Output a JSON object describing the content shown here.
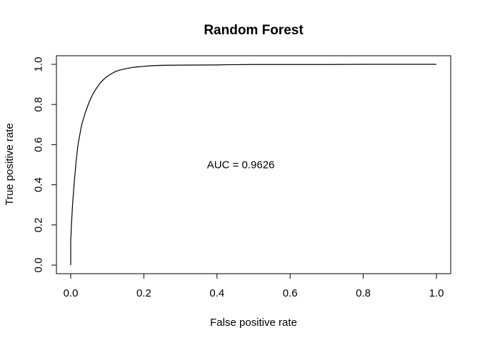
{
  "chart_data": {
    "type": "line",
    "title": "Random Forest",
    "xlabel": "False positive rate",
    "ylabel": "True positive rate",
    "xlim": [
      0,
      1
    ],
    "ylim": [
      0,
      1
    ],
    "x_ticks": [
      0.0,
      0.2,
      0.4,
      0.6,
      0.8,
      1.0
    ],
    "x_tick_labels": [
      "0.0",
      "0.2",
      "0.4",
      "0.6",
      "0.8",
      "1.0"
    ],
    "y_ticks": [
      0.0,
      0.2,
      0.4,
      0.6,
      0.8,
      1.0
    ],
    "y_tick_labels": [
      "0.0",
      "0.2",
      "0.4",
      "0.6",
      "0.8",
      "1.0"
    ],
    "grid": false,
    "series": [
      {
        "color": "#000000",
        "x": [
          0.0,
          0.0,
          0.002,
          0.005,
          0.01,
          0.015,
          0.02,
          0.03,
          0.04,
          0.05,
          0.06,
          0.07,
          0.08,
          0.09,
          0.1,
          0.11,
          0.12,
          0.13,
          0.14,
          0.15,
          0.17,
          0.2,
          0.22,
          0.25,
          0.3,
          0.4,
          0.43,
          0.5,
          0.6,
          0.7,
          0.8,
          0.9,
          1.0
        ],
        "y": [
          0.0,
          0.12,
          0.2,
          0.3,
          0.42,
          0.52,
          0.6,
          0.7,
          0.76,
          0.81,
          0.85,
          0.88,
          0.905,
          0.925,
          0.94,
          0.952,
          0.962,
          0.969,
          0.974,
          0.978,
          0.985,
          0.99,
          0.993,
          0.995,
          0.996,
          0.997,
          0.998,
          0.999,
          0.999,
          0.999,
          1.0,
          1.0,
          1.0
        ]
      }
    ],
    "annotations": [
      {
        "text": "AUC =  0.9626",
        "x": 0.465,
        "y": 0.5
      }
    ]
  }
}
